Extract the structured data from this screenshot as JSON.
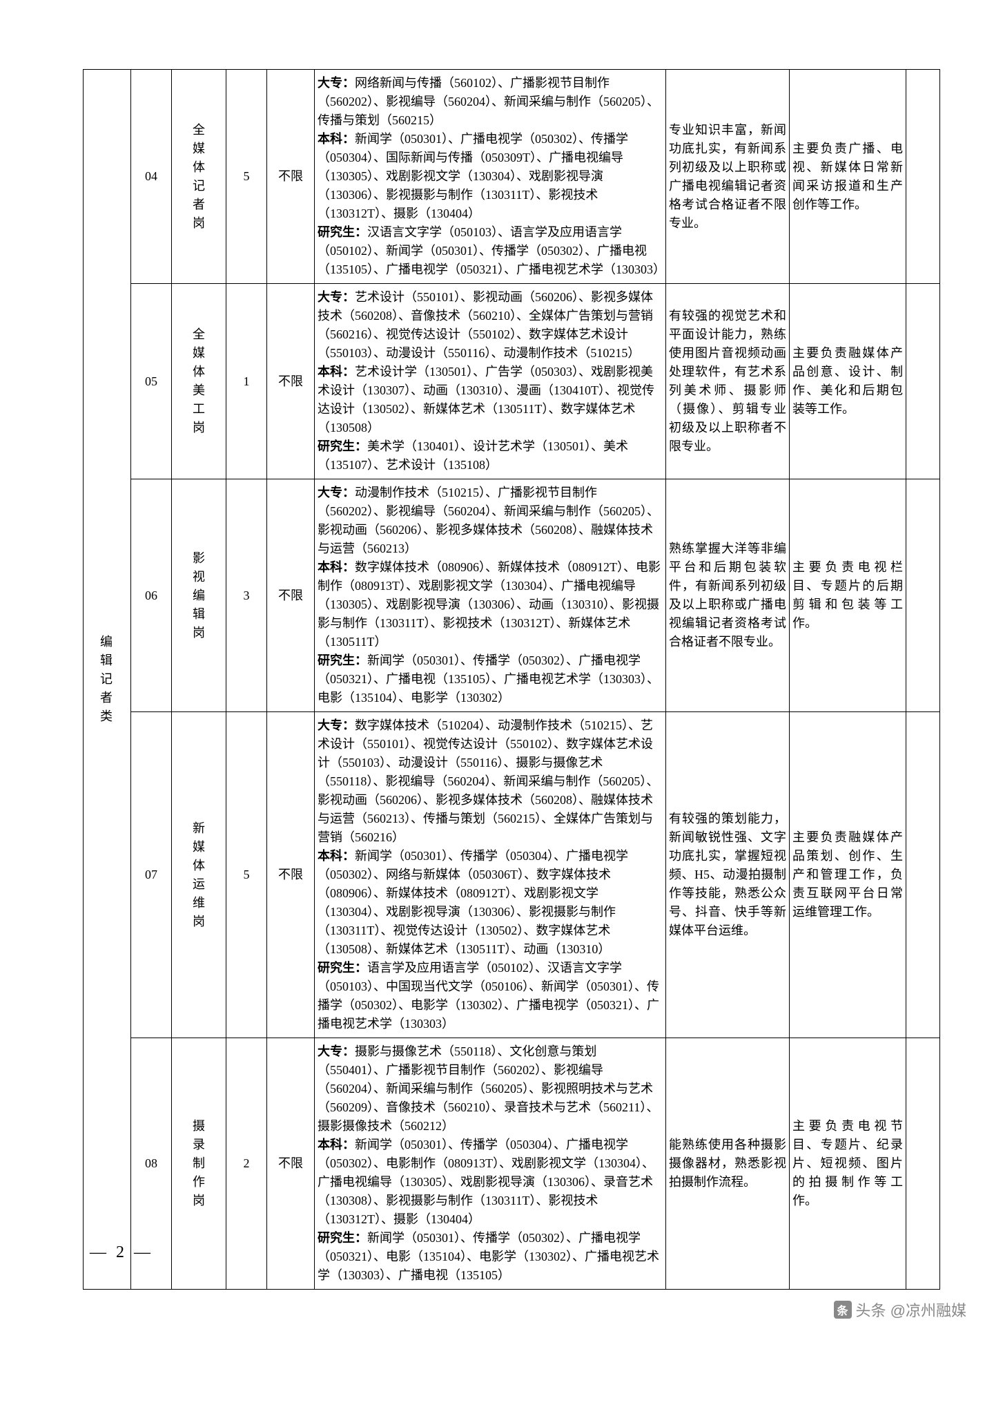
{
  "category": "编辑记者类",
  "page_number": "— 2 —",
  "watermark": "头条 @凉州融媒",
  "rows": [
    {
      "num": "04",
      "post": "全媒体记者岗",
      "count": "5",
      "age": "不限",
      "major_dz": "大专：网络新闻与传播（560102）、广播影视节目制作（560202）、影视编导（560204）、新闻采编与制作（560205）、传播与策划（560215）",
      "major_bk": "本科：新闻学（050301）、广播电视学（050302）、传播学（050304）、国际新闻与传播（050309T）、广播电视编导（130305）、戏剧影视文学（130304）、戏剧影视导演（130306）、影视摄影与制作（130311T）、影视技术（130312T）、摄影（130404）",
      "major_yjs": "研究生：汉语言文字学（050103）、语言学及应用语言学（050102）、新闻学（050301）、传播学（050302）、广播电视（135105）、广播电视学（050321）、广播电视艺术学（130303）",
      "req": "专业知识丰富，新闻功底扎实，有新闻系列初级及以上职称或广播电视编辑记者资格考试合格证者不限专业。",
      "duty": "主要负责广播、电视、新媒体日常新闻采访报道和生产创作等工作。"
    },
    {
      "num": "05",
      "post": "全媒体美工岗",
      "count": "1",
      "age": "不限",
      "major_dz": "大专：艺术设计（550101）、影视动画（560206）、影视多媒体技术（560208）、音像技术（560210）、全媒体广告策划与营销（560216）、视觉传达设计（550102）、数字媒体艺术设计（550103）、动漫设计（550116）、动漫制作技术（510215）",
      "major_bk": "本科：艺术设计学（130501）、广告学（050303）、戏剧影视美术设计（130307）、动画（130310）、漫画（130410T）、视觉传达设计（130502）、新媒体艺术（130511T）、数字媒体艺术（130508）",
      "major_yjs": "研究生：美术学（130401）、设计艺术学（130501）、美术（135107）、艺术设计（135108）",
      "req": "有较强的视觉艺术和平面设计能力，熟练使用图片音视频动画处理软件，有艺术系列美术师、摄影师（摄像）、剪辑专业初级及以上职称者不限专业。",
      "duty": "主要负责融媒体产品创意、设计、制作、美化和后期包装等工作。"
    },
    {
      "num": "06",
      "post": "影视编辑岗",
      "count": "3",
      "age": "不限",
      "major_dz": "大专：动漫制作技术（510215）、广播影视节目制作（560202）、影视编导（560204）、新闻采编与制作（560205）、影视动画（560206）、影视多媒体技术（560208）、融媒体技术与运营（560213）",
      "major_bk": "本科：数字媒体技术（080906）、新媒体技术（080912T）、电影制作（080913T）、戏剧影视文学（130304）、广播电视编导（130305）、戏剧影视导演（130306）、动画（130310）、影视摄影与制作（130311T）、影视技术（130312T）、新媒体艺术（130511T）",
      "major_yjs": "研究生：新闻学（050301）、传播学（050302）、广播电视学（050321）、广播电视（135105）、广播电视艺术学（130303）、电影（135104）、电影学（130302）",
      "req": "熟练掌握大洋等非编平台和后期包装软件，有新闻系列初级及以上职称或广播电视编辑记者资格考试合格证者不限专业。",
      "duty": "主要负责电视栏目、专题片的后期剪辑和包装等工作。"
    },
    {
      "num": "07",
      "post": "新媒体运维岗",
      "count": "5",
      "age": "不限",
      "major_dz": "大专：数字媒体技术（510204）、动漫制作技术（510215）、艺术设计（550101）、视觉传达设计（550102）、数字媒体艺术设计（550103）、动漫设计（550116）、摄影与摄像艺术（550118）、影视编导（560204）、新闻采编与制作（560205）、影视动画（560206）、影视多媒体技术（560208）、融媒体技术与运营（560213）、传播与策划（560215）、全媒体广告策划与营销（560216）",
      "major_bk": "本科：新闻学（050301）、传播学（050304）、广播电视学（050302）、网络与新媒体（050306T）、数字媒体技术（080906）、新媒体技术（080912T）、戏剧影视文学（130304）、戏剧影视导演（130306）、影视摄影与制作（130311T）、视觉传达设计（130502）、数字媒体艺术（130508）、新媒体艺术（130511T）、动画（130310）",
      "major_yjs": "研究生：语言学及应用语言学（050102）、汉语言文字学（050103）、中国现当代文学（050106）、新闻学（050301）、传播学（050302）、电影学（130302）、广播电视学（050321）、广播电视艺术学（130303）",
      "req": "有较强的策划能力，新闻敏锐性强、文字功底扎实，掌握短视频、H5、动漫拍摄制作等技能，熟悉公众号、抖音、快手等新媒体平台运维。",
      "duty": "主要负责融媒体产品策划、创作、生产和管理工作，负责互联网平台日常运维管理工作。"
    },
    {
      "num": "08",
      "post": "摄录制作岗",
      "count": "2",
      "age": "不限",
      "major_dz": "大专：摄影与摄像艺术（550118）、文化创意与策划（550401）、广播影视节目制作（560202）、影视编导（560204）、新闻采编与制作（560205）、影视照明技术与艺术（560209）、音像技术（560210）、录音技术与艺术（560211）、摄影摄像技术（560212）",
      "major_bk": "本科：新闻学（050301）、传播学（050304）、广播电视学（050302）、电影制作（080913T）、戏剧影视文学（130304）、广播电视编导（130305）、戏剧影视导演（130306）、录音艺术（130308）、影视摄影与制作（130311T）、影视技术（130312T）、摄影（130404）",
      "major_yjs": "研究生：新闻学（050301）、传播学（050302）、广播电视学（050321）、电影（135104）、电影学（130302）、广播电视艺术学（130303）、广播电视（135105）",
      "req": "能熟练使用各种摄影摄像器材，熟悉影视拍摄制作流程。",
      "duty": "主要负责电视节目、专题片、纪录片、短视频、图片的拍摄制作等工作。"
    }
  ]
}
